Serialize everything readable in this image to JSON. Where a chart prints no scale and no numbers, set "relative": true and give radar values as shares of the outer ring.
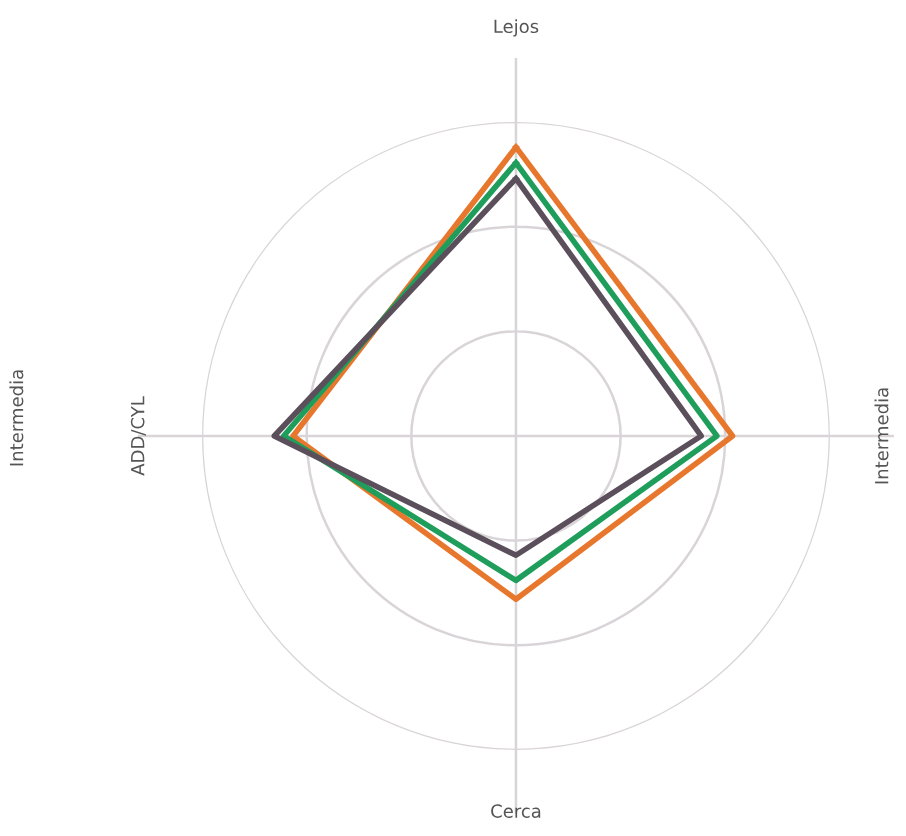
{
  "chart_data": {
    "type": "radar",
    "relative": true,
    "grid": true,
    "categories": [
      "Lejos",
      "Intermedia",
      "Cerca",
      "ADD/CYL"
    ],
    "series": [
      {
        "color": "#e8772e",
        "values": [
          0.92,
          0.69,
          0.52,
          0.71
        ]
      },
      {
        "color": "#1e9e5a",
        "values": [
          0.87,
          0.64,
          0.46,
          0.74
        ]
      },
      {
        "color": "#5a4f5a",
        "values": [
          0.82,
          0.59,
          0.38,
          0.77
        ]
      }
    ],
    "annotations": [
      "Intermedia"
    ]
  }
}
